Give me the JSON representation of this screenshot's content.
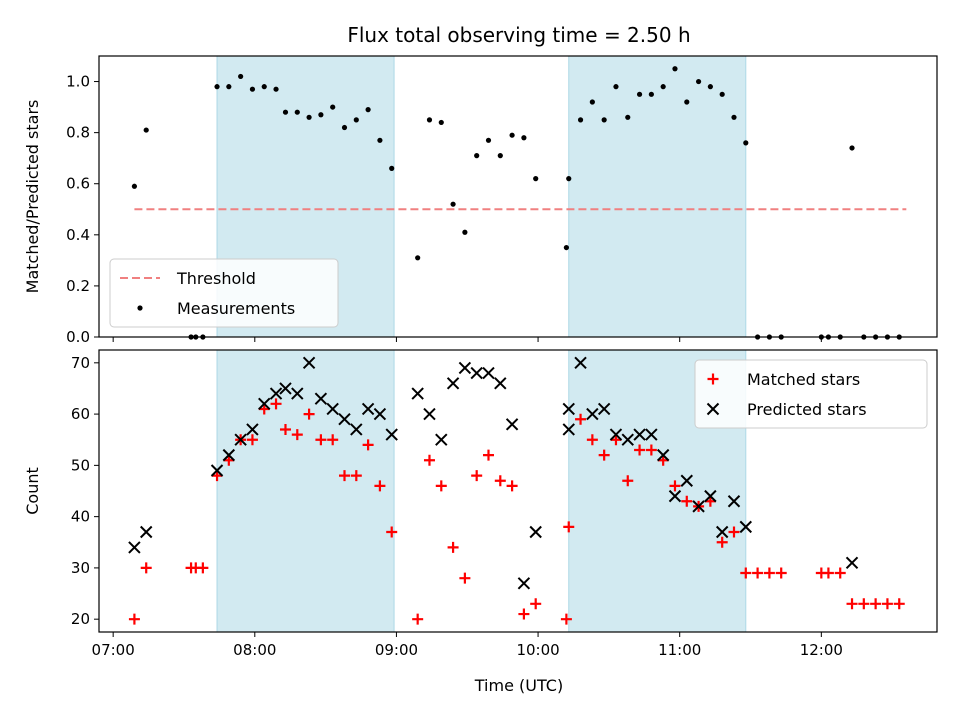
{
  "chart_data": {
    "type": "scatter",
    "title": "Flux total observing time = 2.50 h",
    "xlabel": "Time (UTC)",
    "x_tick_labels": [
      "07:00",
      "08:00",
      "09:00",
      "10:00",
      "11:00",
      "12:00"
    ],
    "x_tick_values": [
      "07:00",
      "08:00",
      "09:00",
      "10:00",
      "11:00",
      "12:00"
    ],
    "xlim": [
      "06:54",
      "12:49"
    ],
    "shaded_intervals": [
      [
        "07:44",
        "08:59"
      ],
      [
        "10:13",
        "11:28"
      ]
    ],
    "shade_color": "#add8e6",
    "panels": [
      {
        "ylabel": "Matched/Predicted stars",
        "ylim": [
          0,
          1.1
        ],
        "y_ticks": [
          "0.0",
          "0.2",
          "0.4",
          "0.6",
          "0.8",
          "1.0"
        ],
        "legend_position": "lower-left",
        "series": [
          {
            "name": "Threshold",
            "kind": "dashed-line",
            "color": "#f08080",
            "x": [
              "07:09",
              "12:36"
            ],
            "y": [
              0.5,
              0.5
            ]
          },
          {
            "name": "Measurements",
            "kind": "dot",
            "color": "#000000",
            "points": [
              [
                "07:09",
                0.59
              ],
              [
                "07:14",
                0.81
              ],
              [
                "07:33",
                0.0
              ],
              [
                "07:35",
                0.0
              ],
              [
                "07:38",
                0.0
              ],
              [
                "07:44",
                0.98
              ],
              [
                "07:49",
                0.98
              ],
              [
                "07:54",
                1.02
              ],
              [
                "07:59",
                0.97
              ],
              [
                "08:04",
                0.98
              ],
              [
                "08:09",
                0.97
              ],
              [
                "08:13",
                0.88
              ],
              [
                "08:18",
                0.88
              ],
              [
                "08:23",
                0.86
              ],
              [
                "08:28",
                0.87
              ],
              [
                "08:33",
                0.9
              ],
              [
                "08:38",
                0.82
              ],
              [
                "08:43",
                0.85
              ],
              [
                "08:48",
                0.89
              ],
              [
                "08:53",
                0.77
              ],
              [
                "08:58",
                0.66
              ],
              [
                "09:09",
                0.31
              ],
              [
                "09:14",
                0.85
              ],
              [
                "09:19",
                0.84
              ],
              [
                "09:24",
                0.52
              ],
              [
                "09:29",
                0.41
              ],
              [
                "09:34",
                0.71
              ],
              [
                "09:39",
                0.77
              ],
              [
                "09:44",
                0.71
              ],
              [
                "09:49",
                0.79
              ],
              [
                "09:54",
                0.78
              ],
              [
                "09:59",
                0.62
              ],
              [
                "10:12",
                0.35
              ],
              [
                "10:13",
                0.62
              ],
              [
                "10:18",
                0.85
              ],
              [
                "10:23",
                0.92
              ],
              [
                "10:28",
                0.85
              ],
              [
                "10:33",
                0.98
              ],
              [
                "10:38",
                0.86
              ],
              [
                "10:43",
                0.95
              ],
              [
                "10:48",
                0.95
              ],
              [
                "10:53",
                0.98
              ],
              [
                "10:58",
                1.05
              ],
              [
                "11:03",
                0.92
              ],
              [
                "11:08",
                1.0
              ],
              [
                "11:13",
                0.98
              ],
              [
                "11:18",
                0.95
              ],
              [
                "11:23",
                0.86
              ],
              [
                "11:28",
                0.76
              ],
              [
                "11:33",
                0.0
              ],
              [
                "11:38",
                0.0
              ],
              [
                "11:43",
                0.0
              ],
              [
                "12:00",
                0.0
              ],
              [
                "12:03",
                0.0
              ],
              [
                "12:08",
                0.0
              ],
              [
                "12:13",
                0.74
              ],
              [
                "12:18",
                0.0
              ],
              [
                "12:23",
                0.0
              ],
              [
                "12:28",
                0.0
              ],
              [
                "12:33",
                0.0
              ]
            ]
          }
        ]
      },
      {
        "ylabel": "Count",
        "ylim": [
          17.5,
          72.5
        ],
        "y_ticks": [
          "20",
          "30",
          "40",
          "50",
          "60",
          "70"
        ],
        "legend_position": "upper-right",
        "series": [
          {
            "name": "Matched stars",
            "kind": "plus",
            "color": "#ff0000",
            "points": [
              [
                "07:09",
                20
              ],
              [
                "07:14",
                30
              ],
              [
                "07:33",
                30
              ],
              [
                "07:35",
                30
              ],
              [
                "07:38",
                30
              ],
              [
                "07:44",
                48
              ],
              [
                "07:49",
                51
              ],
              [
                "07:54",
                55
              ],
              [
                "07:59",
                55
              ],
              [
                "08:04",
                61
              ],
              [
                "08:09",
                62
              ],
              [
                "08:13",
                57
              ],
              [
                "08:18",
                56
              ],
              [
                "08:23",
                60
              ],
              [
                "08:28",
                55
              ],
              [
                "08:33",
                55
              ],
              [
                "08:38",
                48
              ],
              [
                "08:43",
                48
              ],
              [
                "08:48",
                54
              ],
              [
                "08:53",
                46
              ],
              [
                "08:58",
                37
              ],
              [
                "09:09",
                20
              ],
              [
                "09:14",
                51
              ],
              [
                "09:19",
                46
              ],
              [
                "09:24",
                34
              ],
              [
                "09:29",
                28
              ],
              [
                "09:34",
                48
              ],
              [
                "09:39",
                52
              ],
              [
                "09:44",
                47
              ],
              [
                "09:49",
                46
              ],
              [
                "09:54",
                21
              ],
              [
                "09:59",
                23
              ],
              [
                "10:12",
                20
              ],
              [
                "10:13",
                38
              ],
              [
                "10:18",
                59
              ],
              [
                "10:23",
                55
              ],
              [
                "10:28",
                52
              ],
              [
                "10:33",
                55
              ],
              [
                "10:38",
                47
              ],
              [
                "10:43",
                53
              ],
              [
                "10:48",
                53
              ],
              [
                "10:53",
                51
              ],
              [
                "10:58",
                46
              ],
              [
                "11:03",
                43
              ],
              [
                "11:08",
                42
              ],
              [
                "11:13",
                43
              ],
              [
                "11:18",
                35
              ],
              [
                "11:23",
                37
              ],
              [
                "11:28",
                29
              ],
              [
                "11:33",
                29
              ],
              [
                "11:38",
                29
              ],
              [
                "11:43",
                29
              ],
              [
                "12:00",
                29
              ],
              [
                "12:03",
                29
              ],
              [
                "12:08",
                29
              ],
              [
                "12:13",
                23
              ],
              [
                "12:18",
                23
              ],
              [
                "12:23",
                23
              ],
              [
                "12:28",
                23
              ],
              [
                "12:33",
                23
              ]
            ]
          },
          {
            "name": "Predicted stars",
            "kind": "cross",
            "color": "#000000",
            "points": [
              [
                "07:09",
                34
              ],
              [
                "07:14",
                37
              ],
              [
                "07:44",
                49
              ],
              [
                "07:49",
                52
              ],
              [
                "07:54",
                55
              ],
              [
                "07:59",
                57
              ],
              [
                "08:04",
                62
              ],
              [
                "08:09",
                64
              ],
              [
                "08:13",
                65
              ],
              [
                "08:18",
                64
              ],
              [
                "08:23",
                70
              ],
              [
                "08:28",
                63
              ],
              [
                "08:33",
                61
              ],
              [
                "08:38",
                59
              ],
              [
                "08:43",
                57
              ],
              [
                "08:48",
                61
              ],
              [
                "08:53",
                60
              ],
              [
                "08:58",
                56
              ],
              [
                "09:09",
                64
              ],
              [
                "09:14",
                60
              ],
              [
                "09:19",
                55
              ],
              [
                "09:24",
                66
              ],
              [
                "09:29",
                69
              ],
              [
                "09:34",
                68
              ],
              [
                "09:39",
                68
              ],
              [
                "09:44",
                66
              ],
              [
                "09:49",
                58
              ],
              [
                "09:54",
                27
              ],
              [
                "09:59",
                37
              ],
              [
                "10:13",
                57
              ],
              [
                "10:13",
                61
              ],
              [
                "10:18",
                70
              ],
              [
                "10:23",
                60
              ],
              [
                "10:28",
                61
              ],
              [
                "10:33",
                56
              ],
              [
                "10:38",
                55
              ],
              [
                "10:43",
                56
              ],
              [
                "10:48",
                56
              ],
              [
                "10:53",
                52
              ],
              [
                "10:58",
                44
              ],
              [
                "11:03",
                47
              ],
              [
                "11:08",
                42
              ],
              [
                "11:13",
                44
              ],
              [
                "11:18",
                37
              ],
              [
                "11:23",
                43
              ],
              [
                "11:28",
                38
              ],
              [
                "12:13",
                31
              ]
            ]
          }
        ]
      }
    ]
  }
}
